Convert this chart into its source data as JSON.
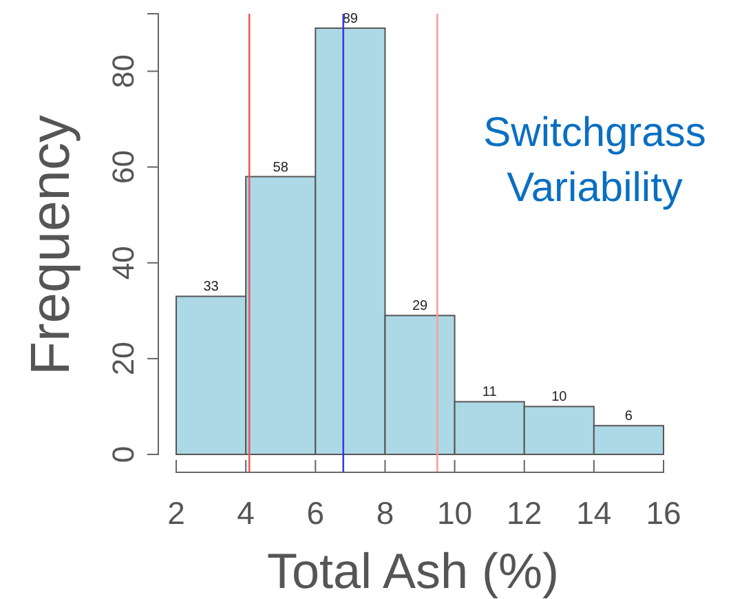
{
  "chart_data": {
    "type": "histogram",
    "xlabel": "Total Ash (%)",
    "ylabel": "Frequency",
    "bins": [
      2,
      4,
      6,
      8,
      10,
      12,
      14,
      16
    ],
    "values": [
      33,
      58,
      89,
      29,
      11,
      10,
      6
    ],
    "color": "#add8e6",
    "data_labels": true,
    "xlim": [
      2,
      16
    ],
    "xticks": [
      2,
      4,
      6,
      8,
      10,
      12,
      14,
      16
    ],
    "ylim": [
      0,
      92
    ],
    "yticks": [
      0,
      20,
      40,
      60,
      80
    ],
    "grid": false,
    "ref_lines": [
      {
        "axis": "x",
        "value": 4.1,
        "color": "#e85a5a"
      },
      {
        "axis": "x",
        "value": 6.8,
        "color": "#3a3ae0"
      },
      {
        "axis": "x",
        "value": 9.5,
        "color": "#ff9a9a"
      }
    ],
    "annotations": [
      "Switchgrass\nVariability"
    ]
  }
}
